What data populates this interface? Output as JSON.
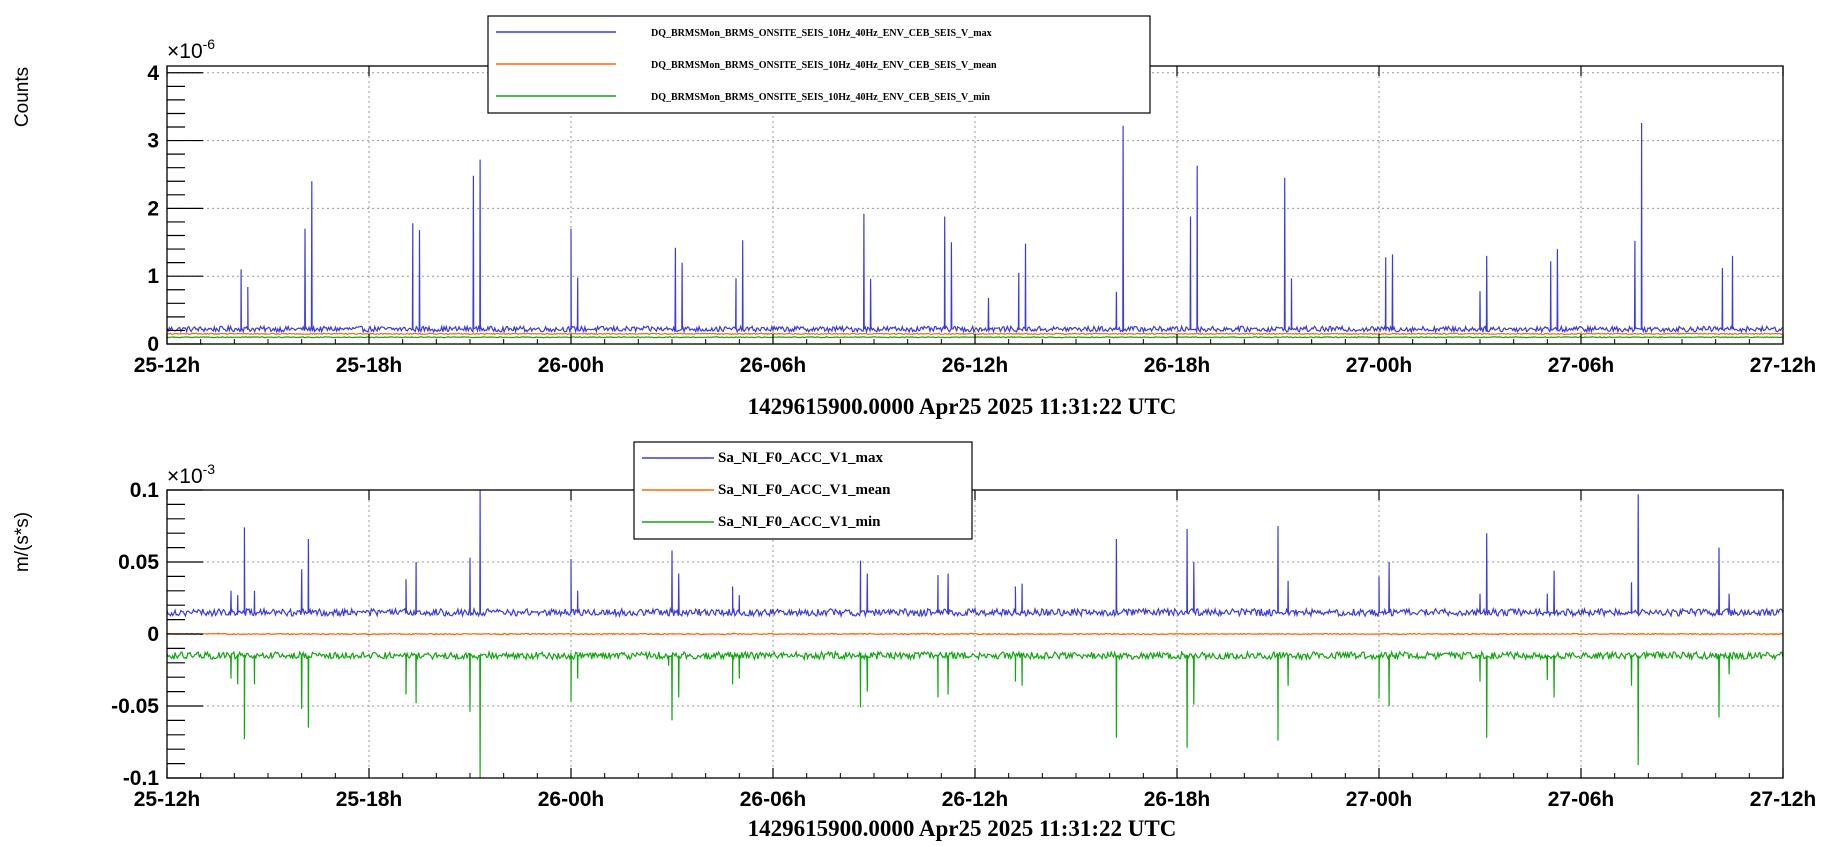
{
  "chart_data": [
    {
      "type": "line",
      "ylabel": "Counts",
      "xlabel": "1429615900.0000 Apr25 2025 11:31:22 UTC",
      "exponent_base": "×10",
      "exponent": "-6",
      "x_ticks": [
        "25-12h",
        "25-18h",
        "26-00h",
        "26-06h",
        "26-12h",
        "26-18h",
        "27-00h",
        "27-06h",
        "27-12h"
      ],
      "x_range_hours": [
        0,
        48
      ],
      "y_ticks": [
        "0",
        "1",
        "2",
        "3",
        "4"
      ],
      "y_tick_values": [
        0,
        1,
        2,
        3,
        4
      ],
      "ylim": [
        0,
        4.1
      ],
      "grid": true,
      "legend": "top-center",
      "series": [
        {
          "name": "DQ_BRMSMon_BRMS_ONSITE_SEIS_10Hz_40Hz_ENV_CEB_SEIS_V_max",
          "color": "#3b3bdc",
          "baseline": 0.22,
          "noise": 0.04,
          "spikes": [
            [
              2.2,
              1.1
            ],
            [
              2.4,
              0.84
            ],
            [
              4.1,
              1.7
            ],
            [
              4.3,
              2.4
            ],
            [
              7.3,
              1.78
            ],
            [
              7.5,
              1.68
            ],
            [
              9.1,
              2.48
            ],
            [
              9.3,
              2.72
            ],
            [
              12.0,
              1.7
            ],
            [
              12.2,
              0.98
            ],
            [
              15.1,
              1.42
            ],
            [
              15.3,
              1.2
            ],
            [
              16.9,
              0.97
            ],
            [
              17.1,
              1.53
            ],
            [
              20.7,
              1.92
            ],
            [
              20.9,
              0.96
            ],
            [
              23.1,
              1.88
            ],
            [
              23.3,
              1.5
            ],
            [
              24.4,
              0.68
            ],
            [
              25.3,
              1.05
            ],
            [
              25.5,
              1.48
            ],
            [
              28.2,
              0.77
            ],
            [
              28.4,
              3.22
            ],
            [
              30.4,
              1.88
            ],
            [
              30.6,
              2.63
            ],
            [
              33.2,
              2.45
            ],
            [
              33.4,
              0.97
            ],
            [
              36.2,
              1.28
            ],
            [
              36.4,
              1.32
            ],
            [
              39.0,
              0.78
            ],
            [
              39.2,
              1.3
            ],
            [
              41.1,
              1.22
            ],
            [
              41.3,
              1.4
            ],
            [
              43.6,
              1.52
            ],
            [
              43.8,
              3.26
            ],
            [
              46.2,
              1.12
            ],
            [
              46.5,
              1.3
            ]
          ]
        },
        {
          "name": "DQ_BRMSMon_BRMS_ONSITE_SEIS_10Hz_40Hz_ENV_CEB_SEIS_V_mean",
          "color": "#ff6600",
          "baseline": 0.15,
          "noise": 0.008
        },
        {
          "name": "DQ_BRMSMon_BRMS_ONSITE_SEIS_10Hz_40Hz_ENV_CEB_SEIS_V_min",
          "color": "#11a611",
          "baseline": 0.1,
          "noise": 0.006
        }
      ]
    },
    {
      "type": "line",
      "ylabel": "m/(s*s)",
      "xlabel": "1429615900.0000 Apr25 2025 11:31:22 UTC",
      "exponent_base": "×10",
      "exponent": "-3",
      "x_ticks": [
        "25-12h",
        "25-18h",
        "26-00h",
        "26-06h",
        "26-12h",
        "26-18h",
        "27-00h",
        "27-06h",
        "27-12h"
      ],
      "x_range_hours": [
        0,
        48
      ],
      "y_ticks": [
        "0.1",
        "0.05",
        "0",
        "-0.05",
        "-0.1"
      ],
      "y_tick_values": [
        0.1,
        0.05,
        0,
        -0.05,
        -0.1
      ],
      "ylim": [
        -0.1,
        0.1
      ],
      "grid": true,
      "legend": "top-center",
      "series": [
        {
          "name": "Sa_NI_F0_ACC_V1_max",
          "color": "#3b3bdc",
          "baseline": 0.015,
          "noise": 0.0025,
          "spikes": [
            [
              1.9,
              0.03
            ],
            [
              2.1,
              0.027
            ],
            [
              2.3,
              0.074
            ],
            [
              2.6,
              0.03
            ],
            [
              4.0,
              0.045
            ],
            [
              4.2,
              0.066
            ],
            [
              7.1,
              0.038
            ],
            [
              7.4,
              0.05
            ],
            [
              9.0,
              0.053
            ],
            [
              9.3,
              0.1
            ],
            [
              12.0,
              0.052
            ],
            [
              12.2,
              0.03
            ],
            [
              15.0,
              0.058
            ],
            [
              15.2,
              0.042
            ],
            [
              16.8,
              0.033
            ],
            [
              17.0,
              0.027
            ],
            [
              20.6,
              0.051
            ],
            [
              20.8,
              0.042
            ],
            [
              22.9,
              0.041
            ],
            [
              23.2,
              0.042
            ],
            [
              25.2,
              0.033
            ],
            [
              25.4,
              0.035
            ],
            [
              28.2,
              0.066
            ],
            [
              30.3,
              0.073
            ],
            [
              30.5,
              0.05
            ],
            [
              33.0,
              0.075
            ],
            [
              33.3,
              0.037
            ],
            [
              36.0,
              0.04
            ],
            [
              36.3,
              0.05
            ],
            [
              39.0,
              0.028
            ],
            [
              39.2,
              0.07
            ],
            [
              41.0,
              0.028
            ],
            [
              41.2,
              0.044
            ],
            [
              43.5,
              0.036
            ],
            [
              43.7,
              0.097
            ],
            [
              46.1,
              0.06
            ],
            [
              46.4,
              0.028
            ]
          ]
        },
        {
          "name": "Sa_NI_F0_ACC_V1_mean",
          "color": "#ff6600",
          "baseline": 0.0,
          "noise": 0.0004
        },
        {
          "name": "Sa_NI_F0_ACC_V1_min",
          "color": "#11a611",
          "baseline": -0.015,
          "noise": 0.0025,
          "spikes": [
            [
              1.9,
              -0.031
            ],
            [
              2.1,
              -0.035
            ],
            [
              2.3,
              -0.073
            ],
            [
              2.6,
              -0.035
            ],
            [
              4.0,
              -0.052
            ],
            [
              4.2,
              -0.065
            ],
            [
              7.1,
              -0.042
            ],
            [
              7.4,
              -0.048
            ],
            [
              9.0,
              -0.054
            ],
            [
              9.3,
              -0.1
            ],
            [
              12.0,
              -0.047
            ],
            [
              12.2,
              -0.031
            ],
            [
              14.9,
              -0.022
            ],
            [
              15.0,
              -0.06
            ],
            [
              15.2,
              -0.044
            ],
            [
              16.8,
              -0.035
            ],
            [
              17.0,
              -0.031
            ],
            [
              20.6,
              -0.051
            ],
            [
              20.8,
              -0.04
            ],
            [
              22.9,
              -0.044
            ],
            [
              23.2,
              -0.042
            ],
            [
              25.2,
              -0.033
            ],
            [
              25.4,
              -0.036
            ],
            [
              28.2,
              -0.072
            ],
            [
              30.3,
              -0.079
            ],
            [
              30.5,
              -0.049
            ],
            [
              33.0,
              -0.074
            ],
            [
              33.3,
              -0.036
            ],
            [
              36.0,
              -0.045
            ],
            [
              36.3,
              -0.05
            ],
            [
              39.0,
              -0.033
            ],
            [
              39.2,
              -0.072
            ],
            [
              41.0,
              -0.032
            ],
            [
              41.2,
              -0.044
            ],
            [
              43.5,
              -0.036
            ],
            [
              43.7,
              -0.091
            ],
            [
              46.1,
              -0.058
            ],
            [
              46.4,
              -0.028
            ]
          ]
        }
      ]
    }
  ]
}
